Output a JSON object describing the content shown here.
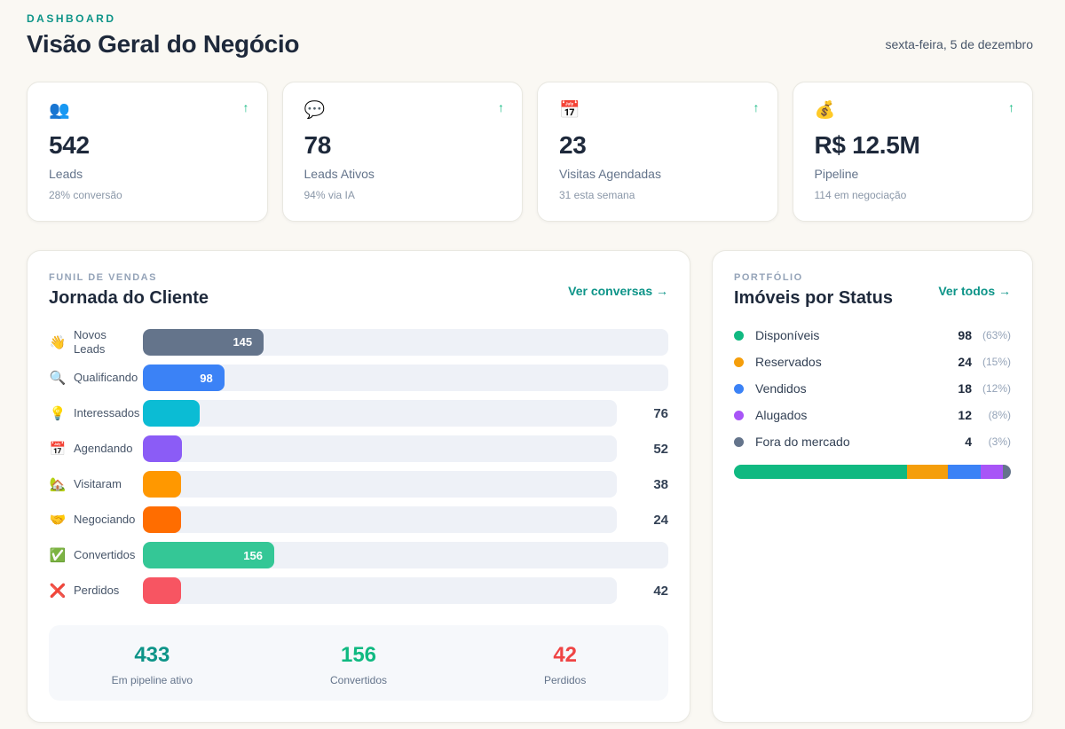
{
  "header": {
    "eyebrow": "DASHBOARD",
    "title": "Visão Geral do Negócio",
    "date": "sexta-feira, 5 de dezembro"
  },
  "stats": [
    {
      "icon": "👥",
      "icon_name": "users-icon",
      "trend_icon": "↑",
      "value": "542",
      "label": "Leads",
      "sub": "28% conversão"
    },
    {
      "icon": "💬",
      "icon_name": "chat-icon",
      "trend_icon": "↑",
      "value": "78",
      "label": "Leads Ativos",
      "sub": "94% via IA"
    },
    {
      "icon": "📅",
      "icon_name": "calendar-icon",
      "trend_icon": "↑",
      "value": "23",
      "label": "Visitas Agendadas",
      "sub": "31 esta semana"
    },
    {
      "icon": "💰",
      "icon_name": "money-bag-icon",
      "trend_icon": "↑",
      "value": "R$ 12.5M",
      "label": "Pipeline",
      "sub": "114 em negociação"
    }
  ],
  "funnel": {
    "eyebrow": "FUNIL DE VENDAS",
    "title": "Jornada do Cliente",
    "link": "Ver conversas →",
    "rows": [
      {
        "icon": "👋",
        "icon_name": "wave-icon",
        "label": "Novos Leads",
        "value": "145",
        "color": "#64748b",
        "fill_pct": 23,
        "value_inside": true
      },
      {
        "icon": "🔍",
        "icon_name": "magnifier-icon",
        "label": "Qualificando",
        "value": "98",
        "color": "#3b82f6",
        "fill_pct": 15.5,
        "value_inside": true
      },
      {
        "icon": "💡",
        "icon_name": "bulb-icon",
        "label": "Interessados",
        "value": "76",
        "color": "#0bbcd4",
        "fill_pct": 12,
        "value_inside": false
      },
      {
        "icon": "📅",
        "icon_name": "calendar-icon",
        "label": "Agendando",
        "value": "52",
        "color": "#8b5cf6",
        "fill_pct": 8.3,
        "value_inside": false
      },
      {
        "icon": "🏡",
        "icon_name": "house-icon",
        "label": "Visitaram",
        "value": "38",
        "color": "#ff9800",
        "fill_pct": 8,
        "value_inside": false
      },
      {
        "icon": "🤝",
        "icon_name": "handshake-icon",
        "label": "Negociando",
        "value": "24",
        "color": "#ff6d00",
        "fill_pct": 8,
        "value_inside": false
      },
      {
        "icon": "✅",
        "icon_name": "check-icon",
        "label": "Convertidos",
        "value": "156",
        "color": "#34c796",
        "fill_pct": 25,
        "value_inside": true
      },
      {
        "icon": "❌",
        "icon_name": "cross-icon",
        "label": "Perdidos",
        "value": "42",
        "color": "#f75562",
        "fill_pct": 8,
        "value_inside": false
      }
    ],
    "summary": [
      {
        "value": "433",
        "label": "Em pipeline ativo",
        "color": "#0d9488"
      },
      {
        "value": "156",
        "label": "Convertidos",
        "color": "#10b981"
      },
      {
        "value": "42",
        "label": "Perdidos",
        "color": "#ef4444"
      }
    ]
  },
  "portfolio": {
    "eyebrow": "PORTFÓLIO",
    "title": "Imóveis por Status",
    "link": "Ver todos →",
    "items": [
      {
        "label": "Disponíveis",
        "value": "98",
        "pct": "(63%)",
        "color": "#10b981",
        "bar_pct": 63
      },
      {
        "label": "Reservados",
        "value": "24",
        "pct": "(15%)",
        "color": "#f59e0b",
        "bar_pct": 15
      },
      {
        "label": "Vendidos",
        "value": "18",
        "pct": "(12%)",
        "color": "#3b82f6",
        "bar_pct": 12
      },
      {
        "label": "Alugados",
        "value": "12",
        "pct": "(8%)",
        "color": "#a855f7",
        "bar_pct": 8
      },
      {
        "label": "Fora do mercado",
        "value": "4",
        "pct": "(3%)",
        "color": "#64748b",
        "bar_pct": 3
      }
    ]
  },
  "chart_data": [
    {
      "type": "bar",
      "title": "Jornada do Cliente",
      "categories": [
        "Novos Leads",
        "Qualificando",
        "Interessados",
        "Agendando",
        "Visitaram",
        "Negociando",
        "Convertidos",
        "Perdidos"
      ],
      "values": [
        145,
        98,
        76,
        52,
        38,
        24,
        156,
        42
      ],
      "orientation": "horizontal"
    },
    {
      "type": "bar",
      "title": "Imóveis por Status",
      "categories": [
        "Disponíveis",
        "Reservados",
        "Vendidos",
        "Alugados",
        "Fora do mercado"
      ],
      "values": [
        98,
        24,
        18,
        12,
        4
      ],
      "percents": [
        63,
        15,
        12,
        8,
        3
      ],
      "orientation": "stacked-horizontal"
    }
  ]
}
